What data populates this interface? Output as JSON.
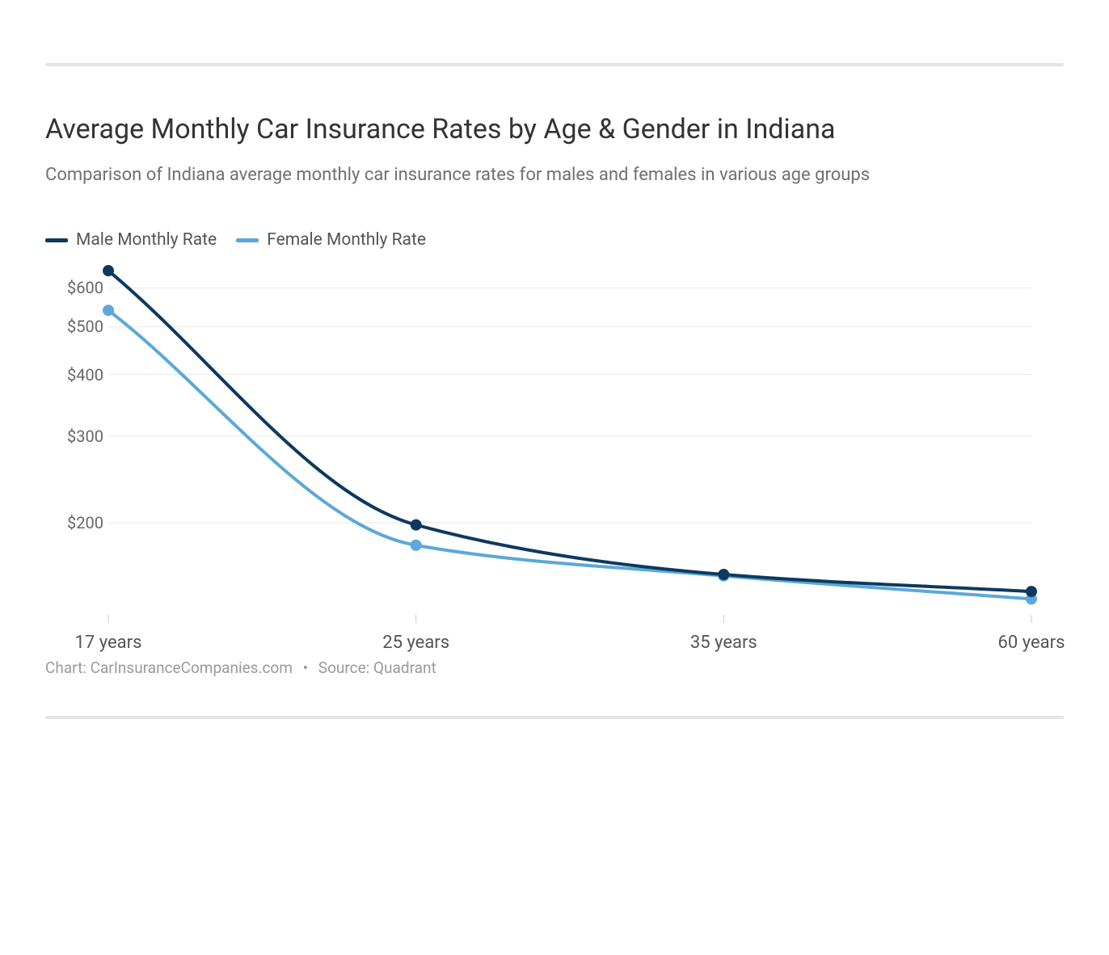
{
  "title": "Average Monthly Car Insurance Rates by Age & Gender in Indiana",
  "subtitle": "Comparison of Indiana average monthly car insurance rates for males and females in various age groups",
  "credits": {
    "chart_label": "Chart: CarInsuranceCompanies.com",
    "source_label": "Source: Quadrant"
  },
  "chart": {
    "type": "line",
    "scale": "log",
    "background_color": "#ffffff",
    "grid_color": "#e9e9e9",
    "grid_line_width": 1,
    "axis_tick_color": "#cccccc",
    "line_width": 4,
    "marker_radius": 7,
    "x": {
      "categories": [
        "17 years",
        "25 years",
        "35 years",
        "60 years"
      ],
      "positions": [
        0,
        1,
        2,
        3
      ]
    },
    "y": {
      "min": 130,
      "max": 670,
      "ticks": [
        200,
        300,
        400,
        500,
        600
      ],
      "tick_prefix": "$"
    },
    "series": [
      {
        "name": "Male Monthly Rate",
        "color": "#0d395f",
        "marker_color": "#0d395f",
        "values": [
          650,
          198,
          157,
          145
        ]
      },
      {
        "name": "Female Monthly Rate",
        "color": "#5ca8d8",
        "marker_color": "#5ca8d8",
        "values": [
          540,
          180,
          156,
          140
        ]
      }
    ],
    "legend": {
      "position": "top-left",
      "font_size": 21,
      "text_color": "#555555",
      "swatch_width": 28,
      "swatch_height": 5
    },
    "title_fontsize": 34,
    "subtitle_fontsize": 22,
    "y_label_fontsize": 20,
    "x_label_fontsize": 22,
    "credits_fontsize": 19,
    "credits_color": "#9a9a9a"
  }
}
